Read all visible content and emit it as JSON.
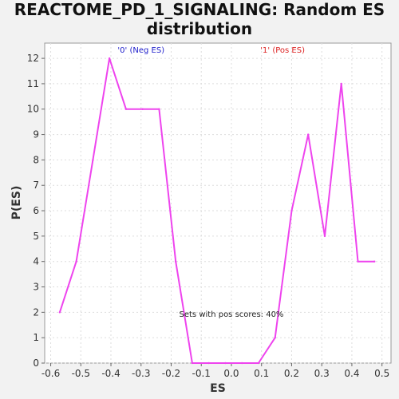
{
  "chart_data": {
    "type": "line",
    "title": "REACTOME_PD_1_SIGNALING: Random ES distribution",
    "xlabel": "ES",
    "ylabel": "P(ES)",
    "xlim": [
      -0.62,
      0.53
    ],
    "ylim": [
      0,
      12.6
    ],
    "xticks": [
      -0.6,
      -0.5,
      -0.4,
      -0.3,
      -0.2,
      -0.1,
      0.0,
      0.1,
      0.2,
      0.3,
      0.4,
      0.5
    ],
    "xtick_labels": [
      "-0.6",
      "-0.5",
      "-0.4",
      "-0.3",
      "-0.2",
      "-0.1",
      "0.0",
      "0.1",
      "0.2",
      "0.3",
      "0.4",
      "0.5"
    ],
    "yticks": [
      0,
      1,
      2,
      3,
      4,
      5,
      6,
      7,
      8,
      9,
      10,
      11,
      12
    ],
    "grid": true,
    "series": [
      {
        "color": "#ee44ee",
        "x": [
          -0.57,
          -0.515,
          -0.46,
          -0.405,
          -0.35,
          -0.295,
          -0.24,
          -0.185,
          -0.13,
          -0.075,
          -0.02,
          0.035,
          0.09,
          0.145,
          0.2,
          0.255,
          0.31,
          0.365,
          0.42,
          0.475
        ],
        "y": [
          2,
          4,
          8,
          12,
          10,
          10,
          10,
          4,
          0,
          0,
          0,
          0,
          0,
          1,
          6,
          9,
          5,
          11,
          4,
          4
        ]
      }
    ],
    "annotations": [
      {
        "text": "'0' (Neg ES)",
        "x": -0.3,
        "y": 12.35,
        "color": "#2222cc"
      },
      {
        "text": "'1' (Pos ES)",
        "x": 0.17,
        "y": 12.35,
        "color": "#dd2222"
      },
      {
        "text": "Sets with pos scores: 40%",
        "x": 0.0,
        "y": 1.95,
        "color": "#222222"
      }
    ]
  }
}
